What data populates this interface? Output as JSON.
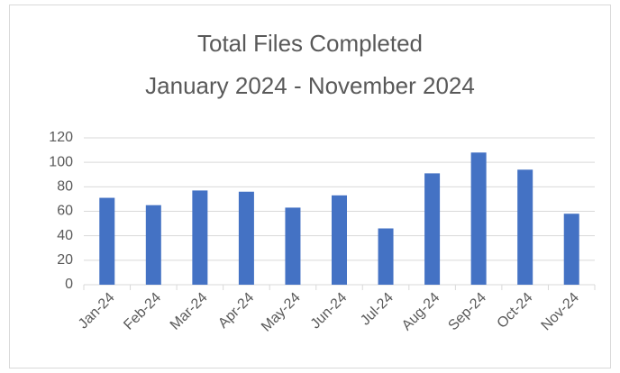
{
  "chart_data": {
    "type": "bar",
    "title": "Total Files Completed",
    "subtitle": "January 2024 - November 2024",
    "categories": [
      "Jan-24",
      "Feb-24",
      "Mar-24",
      "Apr-24",
      "May-24",
      "Jun-24",
      "Jul-24",
      "Aug-24",
      "Sep-24",
      "Oct-24",
      "Nov-24"
    ],
    "values": [
      71,
      65,
      77,
      76,
      63,
      73,
      46,
      91,
      108,
      94,
      58
    ],
    "color": "#4472c4",
    "ylim": [
      0,
      120
    ],
    "yticks": [
      0,
      20,
      40,
      60,
      80,
      100,
      120
    ],
    "grid": true
  }
}
